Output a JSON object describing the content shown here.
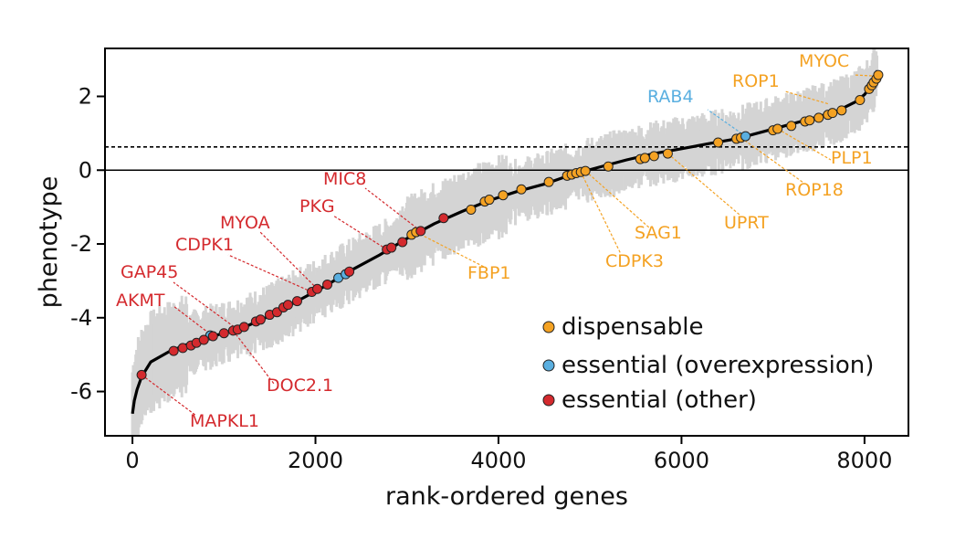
{
  "chart_data": {
    "type": "scatter",
    "title": "",
    "xlabel": "rank-ordered genes",
    "ylabel": "phenotype",
    "xlim": [
      -300,
      8480
    ],
    "ylim": [
      -7.2,
      3.3
    ],
    "x_ticks": [
      0,
      2000,
      4000,
      6000,
      8000
    ],
    "x_tick_labels": [
      "0",
      "2000",
      "4000",
      "6000",
      "8000"
    ],
    "y_ticks": [
      2,
      0,
      -2,
      -4,
      -6
    ],
    "y_tick_labels": [
      "2",
      "0",
      "-2",
      "-4",
      "-6"
    ],
    "grid": false,
    "reference_lines": [
      {
        "y": 0,
        "style": "solid"
      },
      {
        "y": 0.63,
        "style": "dashed"
      }
    ],
    "curve": {
      "name": "rank-ordered phenotype",
      "color": "#000000",
      "band_color": "#d4d4d4",
      "points": [
        [
          0,
          -6.6
        ],
        [
          20,
          -6.25
        ],
        [
          50,
          -5.95
        ],
        [
          100,
          -5.6
        ],
        [
          200,
          -5.2
        ],
        [
          400,
          -4.92
        ],
        [
          600,
          -4.72
        ],
        [
          800,
          -4.55
        ],
        [
          1000,
          -4.42
        ],
        [
          1200,
          -4.28
        ],
        [
          1500,
          -3.95
        ],
        [
          1800,
          -3.55
        ],
        [
          2100,
          -3.15
        ],
        [
          2400,
          -2.7
        ],
        [
          2700,
          -2.3
        ],
        [
          3000,
          -1.85
        ],
        [
          3300,
          -1.45
        ],
        [
          3600,
          -1.12
        ],
        [
          3900,
          -0.82
        ],
        [
          4200,
          -0.58
        ],
        [
          4500,
          -0.38
        ],
        [
          4800,
          -0.12
        ],
        [
          5100,
          0.08
        ],
        [
          5400,
          0.28
        ],
        [
          5700,
          0.45
        ],
        [
          6000,
          0.58
        ],
        [
          6300,
          0.72
        ],
        [
          6600,
          0.85
        ],
        [
          6900,
          1.05
        ],
        [
          7200,
          1.25
        ],
        [
          7500,
          1.45
        ],
        [
          7700,
          1.6
        ],
        [
          7900,
          1.85
        ],
        [
          8000,
          2.05
        ],
        [
          8080,
          2.3
        ],
        [
          8140,
          2.7
        ]
      ]
    },
    "legend": {
      "position": "bottom-right",
      "entries": [
        {
          "label": "dispensable",
          "color": "#f4a223"
        },
        {
          "label": "essential (overexpression)",
          "color": "#5aafe0"
        },
        {
          "label": "essential (other)",
          "color": "#d42a2e"
        }
      ]
    },
    "series": [
      {
        "name": "dispensable",
        "color": "#f4a223",
        "points": [
          [
            3050,
            -1.75
          ],
          [
            3100,
            -1.68
          ],
          [
            3700,
            -1.07
          ],
          [
            3850,
            -0.85
          ],
          [
            3900,
            -0.8
          ],
          [
            4050,
            -0.68
          ],
          [
            4250,
            -0.52
          ],
          [
            4550,
            -0.32
          ],
          [
            4750,
            -0.15
          ],
          [
            4800,
            -0.12
          ],
          [
            4850,
            -0.08
          ],
          [
            4900,
            -0.05
          ],
          [
            4950,
            -0.02
          ],
          [
            5200,
            0.1
          ],
          [
            5550,
            0.3
          ],
          [
            5600,
            0.33
          ],
          [
            5700,
            0.38
          ],
          [
            5850,
            0.45
          ],
          [
            6400,
            0.75
          ],
          [
            6600,
            0.85
          ],
          [
            6650,
            0.88
          ],
          [
            7000,
            1.08
          ],
          [
            7050,
            1.12
          ],
          [
            7200,
            1.2
          ],
          [
            7350,
            1.32
          ],
          [
            7400,
            1.35
          ],
          [
            7500,
            1.42
          ],
          [
            7600,
            1.5
          ],
          [
            7650,
            1.55
          ],
          [
            7750,
            1.62
          ],
          [
            7950,
            1.9
          ],
          [
            8050,
            2.2
          ],
          [
            8080,
            2.3
          ],
          [
            8100,
            2.38
          ],
          [
            8130,
            2.48
          ],
          [
            8150,
            2.58
          ]
        ]
      },
      {
        "name": "essential (overexpression)",
        "color": "#5aafe0",
        "points": [
          [
            850,
            -4.48
          ],
          [
            2250,
            -2.92
          ],
          [
            2330,
            -2.82
          ],
          [
            6700,
            0.92
          ]
        ]
      },
      {
        "name": "essential (other)",
        "color": "#d42a2e",
        "points": [
          [
            100,
            -5.55
          ],
          [
            450,
            -4.9
          ],
          [
            550,
            -4.82
          ],
          [
            640,
            -4.75
          ],
          [
            700,
            -4.68
          ],
          [
            780,
            -4.6
          ],
          [
            880,
            -4.5
          ],
          [
            1000,
            -4.42
          ],
          [
            1100,
            -4.35
          ],
          [
            1150,
            -4.32
          ],
          [
            1220,
            -4.25
          ],
          [
            1350,
            -4.1
          ],
          [
            1400,
            -4.05
          ],
          [
            1500,
            -3.92
          ],
          [
            1580,
            -3.85
          ],
          [
            1650,
            -3.72
          ],
          [
            1700,
            -3.65
          ],
          [
            1800,
            -3.55
          ],
          [
            1960,
            -3.3
          ],
          [
            2020,
            -3.22
          ],
          [
            2130,
            -3.1
          ],
          [
            2370,
            -2.75
          ],
          [
            2780,
            -2.15
          ],
          [
            2830,
            -2.1
          ],
          [
            2950,
            -1.95
          ],
          [
            3150,
            -1.65
          ],
          [
            3400,
            -1.3
          ]
        ]
      }
    ],
    "annotations": [
      {
        "label": "MYOC",
        "color": "#f4a223",
        "x": 8130,
        "y": 2.55
      },
      {
        "label": "ROP1",
        "color": "#f4a223",
        "x": 7600,
        "y": 1.8
      },
      {
        "label": "RAB4",
        "color": "#5aafe0",
        "x": 6700,
        "y": 0.92
      },
      {
        "label": "PLP1",
        "color": "#f4a223",
        "x": 7050,
        "y": 1.12
      },
      {
        "label": "ROP18",
        "color": "#f4a223",
        "x": 6650,
        "y": 0.88
      },
      {
        "label": "UPRT",
        "color": "#f4a223",
        "x": 5850,
        "y": 0.45
      },
      {
        "label": "SAG1",
        "color": "#f4a223",
        "x": 4950,
        "y": -0.02
      },
      {
        "label": "CDPK3",
        "color": "#f4a223",
        "x": 4900,
        "y": -0.05
      },
      {
        "label": "FBP1",
        "color": "#f4a223",
        "x": 3100,
        "y": -1.68
      },
      {
        "label": "MIC8",
        "color": "#d42a2e",
        "x": 3150,
        "y": -1.65
      },
      {
        "label": "PKG",
        "color": "#d42a2e",
        "x": 2780,
        "y": -2.15
      },
      {
        "label": "MYOA",
        "color": "#d42a2e",
        "x": 2020,
        "y": -3.22
      },
      {
        "label": "CDPK1",
        "color": "#d42a2e",
        "x": 1960,
        "y": -3.3
      },
      {
        "label": "GAP45",
        "color": "#d42a2e",
        "x": 1150,
        "y": -4.32
      },
      {
        "label": "AKMT",
        "color": "#d42a2e",
        "x": 880,
        "y": -4.5
      },
      {
        "label": "DOC2.1",
        "color": "#d42a2e",
        "x": 1100,
        "y": -4.35
      },
      {
        "label": "MAPKL1",
        "color": "#d42a2e",
        "x": 100,
        "y": -5.55
      }
    ]
  }
}
